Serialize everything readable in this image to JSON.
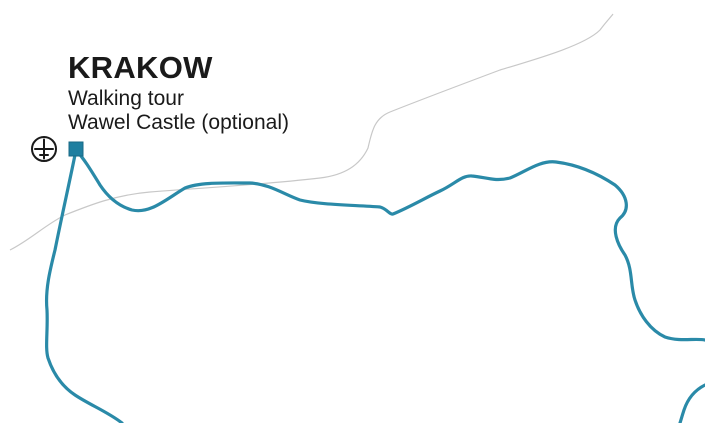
{
  "map": {
    "stop": {
      "city": "KRAKOW",
      "details": [
        "Walking tour",
        "Wawel Castle (optional)"
      ],
      "marker_shape": "square",
      "has_airport": true
    },
    "icons": {
      "airport": "airplane-icon",
      "stop_marker": "square-marker-icon"
    },
    "colors": {
      "background": "#ffffff",
      "route": "#2a8aa8",
      "marker": "#1f7fa0",
      "border": "#c8c8c8",
      "text": "#1a1a1a"
    }
  }
}
